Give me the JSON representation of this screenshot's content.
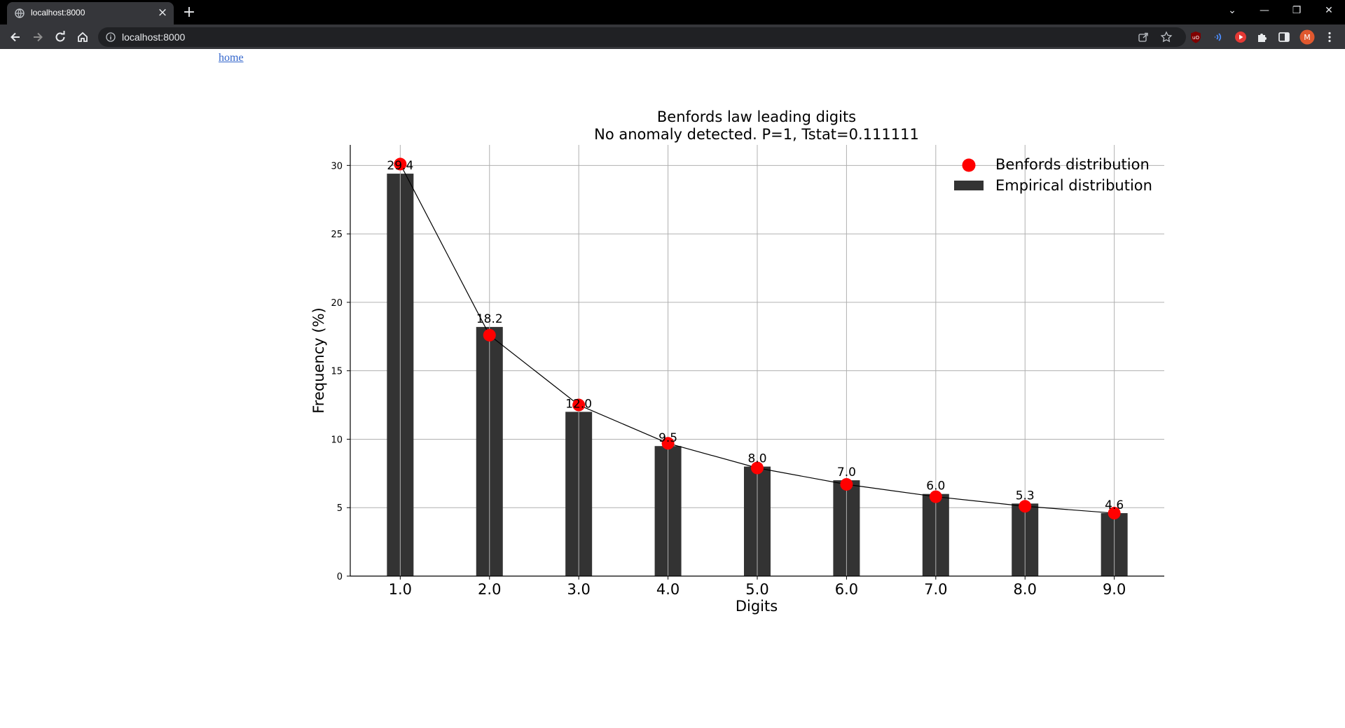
{
  "browser": {
    "tab_title": "localhost:8000",
    "tab_close": "×",
    "new_tab": "+",
    "url": "localhost:8000",
    "window": {
      "menu": "⌄",
      "minimize": "—",
      "restore": "❐",
      "close": "✕"
    },
    "profile_initial": "M"
  },
  "page": {
    "home_link": "home"
  },
  "chart_data": {
    "type": "bar",
    "title": "Benfords law leading digits",
    "subtitle": "No anomaly detected. P=1, Tstat=0.111111",
    "xlabel": "Digits",
    "ylabel": "Frequency (%)",
    "categories": [
      "1.0",
      "2.0",
      "3.0",
      "4.0",
      "5.0",
      "6.0",
      "7.0",
      "8.0",
      "9.0"
    ],
    "x": [
      1,
      2,
      3,
      4,
      5,
      6,
      7,
      8,
      9
    ],
    "ylim": [
      0,
      31.5
    ],
    "yticks": [
      0,
      5,
      10,
      15,
      20,
      25,
      30
    ],
    "grid": true,
    "legend_position": "top-right",
    "series": [
      {
        "name": "Empirical distribution",
        "kind": "bar",
        "color": "#333333",
        "values": [
          29.4,
          18.2,
          12.0,
          9.5,
          8.0,
          7.0,
          6.0,
          5.3,
          4.6
        ],
        "labels": [
          "29.4",
          "18.2",
          "12.0",
          "9.5",
          "8.0",
          "7.0",
          "6.0",
          "5.3",
          "4.6"
        ]
      },
      {
        "name": "Benfords distribution",
        "kind": "line-markers",
        "color": "#ff0000",
        "line_color": "#000000",
        "values": [
          30.1,
          17.6,
          12.5,
          9.7,
          7.9,
          6.7,
          5.8,
          5.1,
          4.6
        ]
      }
    ]
  }
}
